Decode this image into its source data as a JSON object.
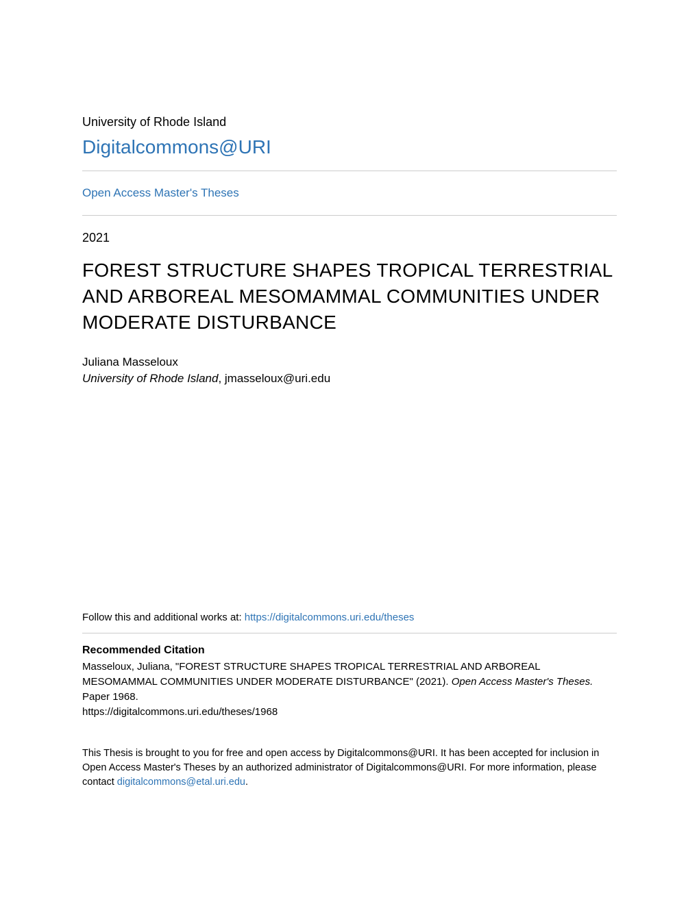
{
  "header": {
    "institution": "University of Rhode Island",
    "repository": "Digitalcommons@URI"
  },
  "collection": {
    "name": "Open Access Master's Theses"
  },
  "paper": {
    "year": "2021",
    "title": "FOREST STRUCTURE SHAPES TROPICAL TERRESTRIAL AND ARBOREAL MESOMAMMAL COMMUNITIES UNDER MODERATE DISTURBANCE",
    "author_name": "Juliana Masseloux",
    "author_affiliation": "University of Rhode Island",
    "author_email": ", jmasseloux@uri.edu"
  },
  "follow": {
    "prefix": "Follow this and additional works at: ",
    "url": "https://digitalcommons.uri.edu/theses"
  },
  "citation": {
    "heading": "Recommended Citation",
    "line1": "Masseloux, Juliana, \"FOREST STRUCTURE SHAPES TROPICAL TERRESTRIAL AND ARBOREAL MESOMAMMAL COMMUNITIES UNDER MODERATE DISTURBANCE\" (2021). ",
    "series": "Open Access Master's Theses.",
    "paper_num": " Paper 1968.",
    "url": "https://digitalcommons.uri.edu/theses/1968"
  },
  "footer": {
    "text": "This Thesis is brought to you for free and open access by Digitalcommons@URI. It has been accepted for inclusion in Open Access Master's Theses by an authorized administrator of Digitalcommons@URI. For more information, please contact ",
    "contact": "digitalcommons@etal.uri.edu",
    "suffix": "."
  },
  "styling": {
    "link_color": "#2e74b5",
    "text_color": "#000000",
    "divider_color": "#cccccc",
    "background_color": "#ffffff",
    "title_fontsize": 28,
    "body_fontsize": 17,
    "small_fontsize": 15,
    "footer_fontsize": 14.5
  }
}
